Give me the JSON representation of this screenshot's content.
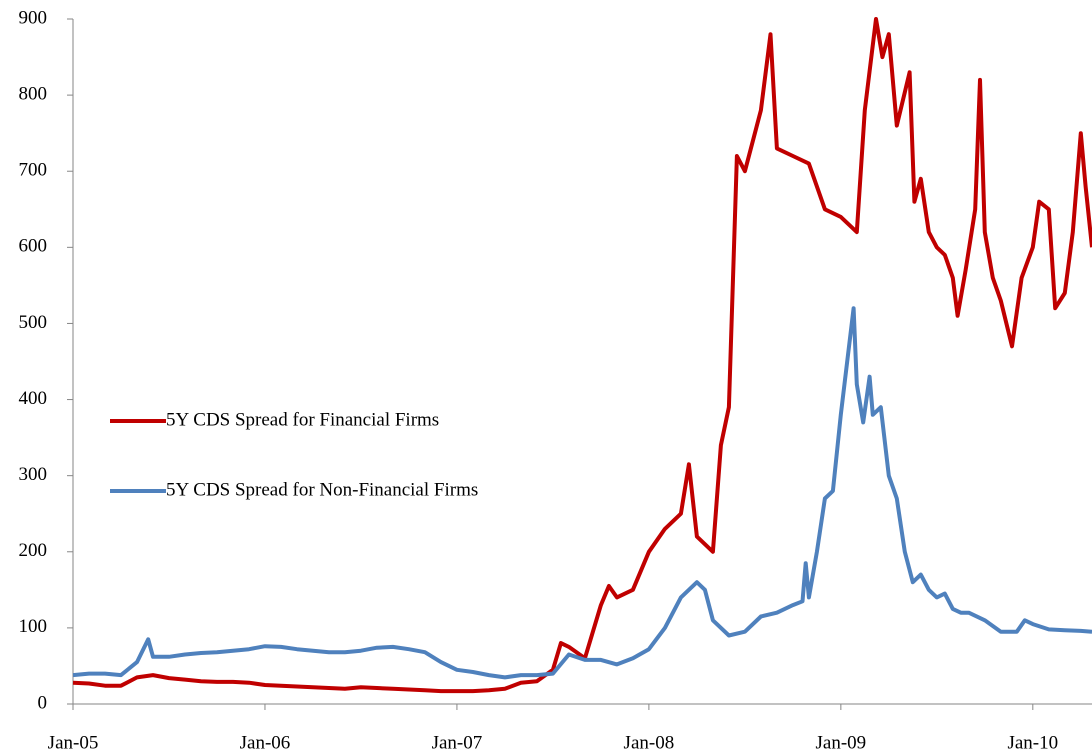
{
  "chart_data": {
    "type": "line",
    "xlim": [
      0,
      63.7
    ],
    "xticks": [
      {
        "value": 0,
        "label": "Jan-05"
      },
      {
        "value": 12,
        "label": "Jan-06"
      },
      {
        "value": 24,
        "label": "Jan-07"
      },
      {
        "value": 36,
        "label": "Jan-08"
      },
      {
        "value": 48,
        "label": "Jan-09"
      },
      {
        "value": 60,
        "label": "Jan-10"
      }
    ],
    "ylim": [
      0,
      900
    ],
    "yticks": [
      0,
      100,
      200,
      300,
      400,
      500,
      600,
      700,
      800,
      900
    ],
    "legend": "center-left",
    "series": [
      {
        "name": "5Y CDS Spread for Financial Firms",
        "color": "#c00000",
        "x": [
          0,
          1,
          2,
          3,
          4,
          5,
          6,
          7,
          8,
          9,
          10,
          11,
          12,
          13,
          14,
          15,
          16,
          17,
          18,
          19,
          20,
          21,
          22,
          23,
          24,
          25,
          26,
          27,
          28,
          29,
          30,
          30.5,
          31,
          32,
          33,
          33.5,
          34,
          35,
          36,
          37,
          38,
          38.5,
          39,
          40,
          40.5,
          41,
          41.5,
          42,
          43,
          43.6,
          44,
          45,
          46,
          47,
          48,
          49,
          49.5,
          50.2,
          50.6,
          51,
          51.5,
          52.3,
          52.6,
          53,
          53.5,
          54,
          54.5,
          55,
          55.3,
          55.8,
          56.4,
          56.7,
          57,
          57.5,
          58,
          58.7,
          59.3,
          60,
          60.4,
          61,
          61.4,
          62,
          62.5,
          63,
          63.3,
          63.7
        ],
        "values": [
          28,
          27,
          24,
          24,
          35,
          38,
          34,
          32,
          30,
          29,
          29,
          28,
          25,
          24,
          23,
          22,
          21,
          20,
          22,
          21,
          20,
          19,
          18,
          17,
          17,
          17,
          18,
          20,
          28,
          30,
          45,
          80,
          75,
          60,
          130,
          155,
          140,
          150,
          200,
          230,
          250,
          315,
          220,
          200,
          340,
          390,
          720,
          700,
          780,
          880,
          730,
          720,
          710,
          650,
          640,
          620,
          780,
          900,
          850,
          880,
          760,
          830,
          660,
          690,
          620,
          600,
          590,
          560,
          510,
          570,
          650,
          820,
          620,
          560,
          530,
          470,
          560,
          600,
          660,
          650,
          520,
          540,
          620,
          750,
          680,
          600
        ]
      },
      {
        "name": "5Y CDS Spread for Non-Financial Firms",
        "color": "#4f81bd",
        "x": [
          0,
          1,
          2,
          3,
          4,
          4.7,
          5,
          6,
          7,
          8,
          9,
          10,
          11,
          12,
          13,
          14,
          15,
          16,
          17,
          18,
          19,
          20,
          21,
          22,
          23,
          24,
          25,
          26,
          27,
          28,
          29,
          30,
          31,
          32,
          33,
          34,
          35,
          36,
          37,
          38,
          39,
          39.5,
          40,
          41,
          42,
          43,
          44,
          45,
          45.6,
          45.8,
          46,
          46.5,
          47,
          47.5,
          48,
          48.8,
          49,
          49.4,
          49.8,
          50,
          50.5,
          51,
          51.5,
          52,
          52.5,
          53,
          53.5,
          54,
          54.5,
          55,
          55.5,
          56,
          57,
          58,
          59,
          59.5,
          60,
          61,
          62,
          63,
          63.7
        ],
        "values": [
          38,
          40,
          40,
          38,
          55,
          85,
          62,
          62,
          65,
          67,
          68,
          70,
          72,
          76,
          75,
          72,
          70,
          68,
          68,
          70,
          74,
          75,
          72,
          68,
          55,
          45,
          42,
          38,
          35,
          38,
          38,
          40,
          65,
          58,
          58,
          52,
          60,
          72,
          100,
          140,
          160,
          150,
          110,
          90,
          95,
          115,
          120,
          130,
          135,
          185,
          140,
          200,
          270,
          280,
          380,
          520,
          420,
          370,
          430,
          380,
          390,
          300,
          270,
          200,
          160,
          170,
          150,
          140,
          145,
          125,
          120,
          120,
          110,
          95,
          95,
          110,
          105,
          98,
          97,
          96,
          95
        ]
      }
    ]
  }
}
